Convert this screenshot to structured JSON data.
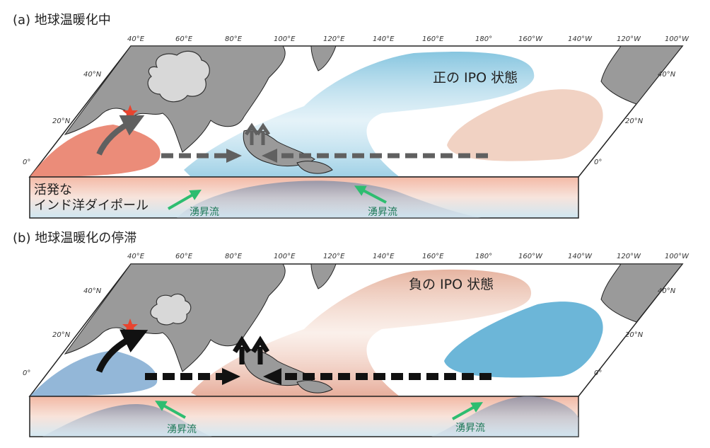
{
  "panel_a": {
    "title": "(a) 地球温暖化中",
    "ipo_label": "正の IPO 状態",
    "iod_line1": "活発な",
    "iod_line2": "インド洋ダイポール",
    "upwelling_west": "湧昇流",
    "upwelling_east": "湧昇流"
  },
  "panel_b": {
    "title": "(b) 地球温暖化の停滞",
    "ipo_label": "負の IPO 状態",
    "upwelling_west": "湧昇流",
    "upwelling_east": "湧昇流"
  },
  "lon_ticks": [
    "40°E",
    "60°E",
    "80°E",
    "100°E",
    "120°E",
    "140°E",
    "160°E",
    "180°",
    "160°W",
    "140°W",
    "120°W",
    "100°W"
  ],
  "lat_ticks": [
    "40°N",
    "20°N",
    "0°"
  ],
  "colors": {
    "land": "#9a9a9a",
    "warm": "#e9806a",
    "warm_light": "#f1d2c3",
    "cool": "#6cb6d8",
    "cool_light": "#cfe6f2",
    "arrow_gray": "#606060",
    "arrow_black": "#111111",
    "upwelling_arrow": "#2ebd70",
    "star": "#e8442f"
  }
}
